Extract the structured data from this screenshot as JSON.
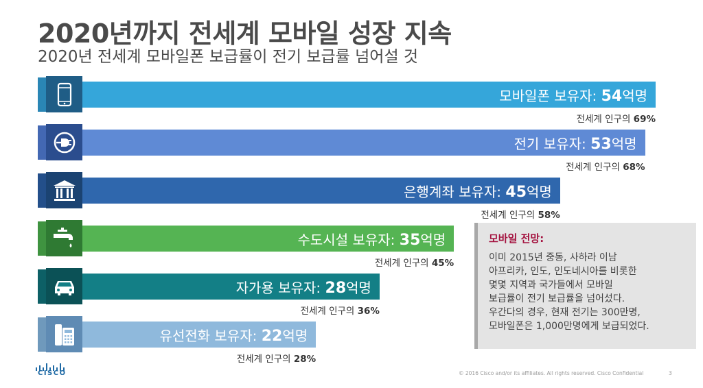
{
  "title": "2020년까지 전세계 모바일 성장 지속",
  "subtitle": "2020년 전세계 모바일폰 보급률이 전기 보급률 넘어설 것",
  "chart_data": {
    "type": "bar",
    "orientation": "horizontal",
    "unit": "억명",
    "categories": [
      "모바일폰 보유자",
      "전기 보유자",
      "은행계좌 보유자",
      "수도시설 보유자",
      "자가용 보유자",
      "유선전화 보유자"
    ],
    "values": [
      54,
      53,
      45,
      35,
      28,
      22
    ],
    "value_suffix": "억명",
    "bar_label_sep": ": ",
    "pct_prefix": "전세계 인구의 ",
    "percent_of_population": [
      "69%",
      "68%",
      "58%",
      "45%",
      "36%",
      "28%"
    ],
    "icons": [
      "mobile-phone-icon",
      "power-plug-icon",
      "bank-icon",
      "water-tap-icon",
      "car-icon",
      "landline-phone-icon"
    ],
    "colors": [
      "#35a6da",
      "#5f8ad5",
      "#2f67ad",
      "#55b453",
      "#137f86",
      "#8fb9dc"
    ],
    "band_colors": [
      "#2a86b5",
      "#4368b3",
      "#234f8a",
      "#3f9340",
      "#0d6066",
      "#6f99bc"
    ],
    "icon_bg": [
      "#1f5d86",
      "#2b4d8e",
      "#1b4372",
      "#2f7a33",
      "#0b5156",
      "#5f8bb4"
    ]
  },
  "outlook": {
    "title": "모바일 전망:",
    "lines": [
      "이미 2015년 중동, 사하라 이남",
      "아프리카, 인도, 인도네시아를 비롯한",
      "몇몇 지역과 국가들에서 모바일",
      "보급률이 전기 보급률을 넘어섰다.",
      "우간다의 경우, 현재 전기는 300만명,",
      "모바일폰은 1,000만명에게 보급되었다."
    ]
  },
  "logo_text": "CISCO",
  "footer": "© 2016  Cisco and/or its affiliates. All rights reserved.   Cisco Confidential",
  "page_number": "3"
}
